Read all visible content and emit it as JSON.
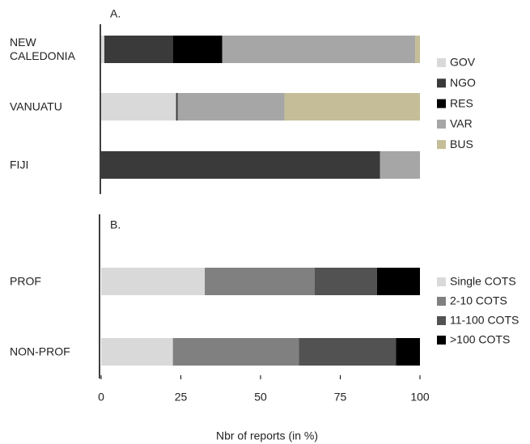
{
  "chart_data": [
    {
      "type": "bar",
      "orientation": "horizontal",
      "stacked": true,
      "title": "A.",
      "categories": [
        "NEW CALEDONIA",
        "VANUATU",
        "FIJI"
      ],
      "series": [
        {
          "name": "GOV",
          "color": "#d9d9d9",
          "values": [
            1,
            23.5,
            0
          ]
        },
        {
          "name": "NGO",
          "color": "#3a3a3a",
          "values": [
            21.5,
            0.5,
            87.5
          ]
        },
        {
          "name": "RES",
          "color": "#000000",
          "values": [
            15.5,
            0,
            0
          ]
        },
        {
          "name": "VAR",
          "color": "#a6a6a6",
          "values": [
            60.5,
            33.5,
            12.5
          ]
        },
        {
          "name": "BUS",
          "color": "#c4bd97",
          "values": [
            1.5,
            42.5,
            0
          ]
        }
      ],
      "xlim": [
        0,
        100
      ]
    },
    {
      "type": "bar",
      "orientation": "horizontal",
      "stacked": true,
      "title": "B.",
      "categories": [
        "PROF",
        "NON-PROF"
      ],
      "series": [
        {
          "name": "Single COTS",
          "color": "#d9d9d9",
          "values": [
            32.5,
            22.5
          ]
        },
        {
          "name": "2-10 COTS",
          "color": "#808080",
          "values": [
            34.5,
            39.5
          ]
        },
        {
          "name": "11-100 COTS",
          "color": "#525252",
          "values": [
            19.5,
            30.5
          ]
        },
        {
          "name": ">100 COTS",
          "color": "#000000",
          "values": [
            13.5,
            7.5
          ]
        }
      ],
      "xlim": [
        0,
        100
      ],
      "xticks": [
        0,
        25,
        50,
        75,
        100
      ],
      "xlabel": "Nbr of reports (in %)"
    }
  ]
}
